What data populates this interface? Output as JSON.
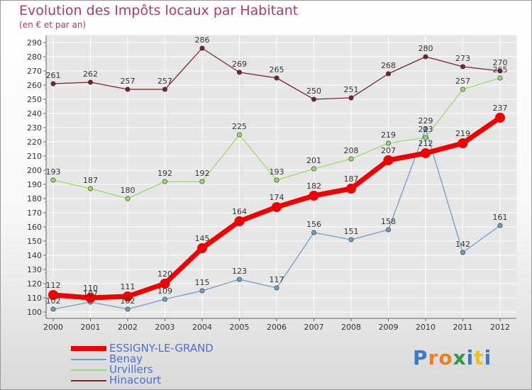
{
  "title": "Evolution des Impôts locaux par Habitant",
  "subtitle": "(en € et par an)",
  "logo_text": "Proxiti",
  "colors": {
    "title": "#b03a6e",
    "legend_text": "#4a6fd6",
    "axis": "#666666",
    "grid": "#ffffff"
  },
  "chart_data": {
    "type": "line",
    "title": "Evolution des Impôts locaux par Habitant",
    "subtitle": "(en € et par an)",
    "xlabel": "",
    "ylabel": "",
    "x": [
      "2000",
      "2001",
      "2002",
      "2003",
      "2004",
      "2005",
      "2006",
      "2007",
      "2008",
      "2009",
      "2010",
      "2011",
      "2012"
    ],
    "ylim": [
      100,
      290
    ],
    "ytick_step": 10,
    "grid": true,
    "legend_position": "bottom-left",
    "series": [
      {
        "name": "ESSIGNY-LE-GRAND",
        "color": "#ee0000",
        "width": 7,
        "marker": 7,
        "values": [
          112,
          110,
          111,
          120,
          145,
          164,
          174,
          182,
          187,
          207,
          212,
          219,
          237
        ]
      },
      {
        "name": "Benay",
        "color": "#6f9fc7",
        "width": 1.3,
        "marker": 3.2,
        "values": [
          102,
          107,
          102,
          109,
          115,
          123,
          117,
          156,
          151,
          158,
          229,
          142,
          161
        ]
      },
      {
        "name": "Urvillers",
        "color": "#99dd66",
        "width": 1.3,
        "marker": 3.2,
        "values": [
          193,
          187,
          180,
          192,
          192,
          225,
          193,
          201,
          208,
          219,
          223,
          257,
          265
        ]
      },
      {
        "name": "Hinacourt",
        "color": "#7a2525",
        "width": 1.3,
        "marker": 3.2,
        "values": [
          261,
          262,
          257,
          257,
          286,
          269,
          265,
          250,
          251,
          268,
          280,
          273,
          270
        ]
      }
    ]
  }
}
